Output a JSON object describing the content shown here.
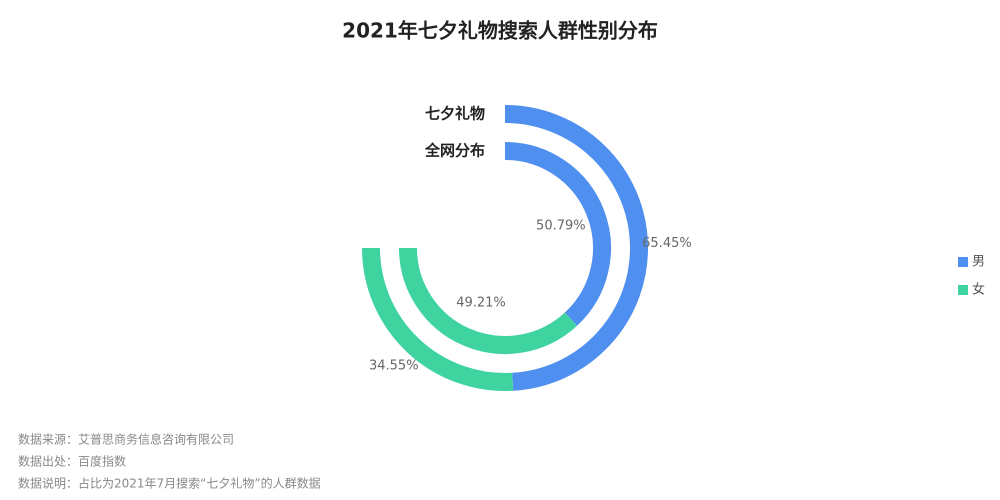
{
  "chart_data": {
    "type": "radial_bar",
    "title": "2021年七夕礼物搜索人群性别分布",
    "categories": [
      "七夕礼物",
      "全网分布"
    ],
    "series": [
      {
        "name": "男",
        "color": "#4e8ff0",
        "values": [
          65.45,
          50.79
        ],
        "value_labels": [
          "65.45%",
          "50.79%"
        ]
      },
      {
        "name": "女",
        "color": "#3fd3a0",
        "values": [
          34.55,
          49.21
        ],
        "value_labels": [
          "34.55%",
          "49.21%"
        ]
      }
    ],
    "notes": [
      "数据来源：艾普思商务信息咨询有限公司",
      "数据出处：百度指数",
      "数据说明：占比为2021年7月搜索“七夕礼物”的人群数据"
    ]
  }
}
